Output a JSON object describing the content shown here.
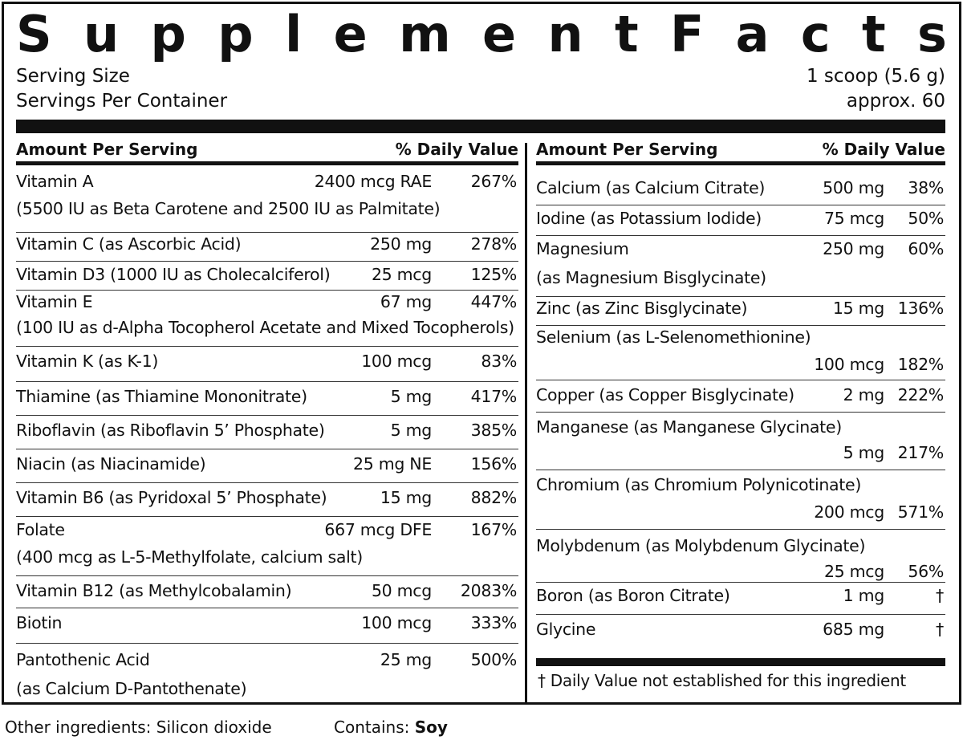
{
  "label": {
    "title_letters": [
      "S",
      "u",
      "p",
      "p",
      "l",
      "e",
      "m",
      "e",
      "n",
      "t",
      "F",
      "a",
      "c",
      "t",
      "s"
    ],
    "serving_size_label": "Serving Size",
    "serving_size_value": "1 scoop (5.6 g)",
    "servings_per_container_label": "Servings Per Container",
    "servings_per_container_value": "approx. 60",
    "amount_per_serving_label": "Amount Per Serving",
    "daily_value_label": "% Daily Value"
  },
  "left_nutrients": [
    {
      "name": "Vitamin A",
      "sub": "(5500 IU as Beta Carotene and 2500 IU as Palmitate)",
      "amount": "2400 mcg RAE",
      "dv": "267%"
    },
    {
      "name": "Vitamin C (as Ascorbic Acid)",
      "sub": "",
      "amount": "250 mg",
      "dv": "278%"
    },
    {
      "name": "Vitamin D3 (1000 IU as Cholecalciferol)",
      "sub": "",
      "amount": "25 mcg",
      "dv": "125%"
    },
    {
      "name": "Vitamin E",
      "sub": "(100 IU as d-Alpha Tocopherol Acetate and Mixed Tocopherols)",
      "amount": "67 mg",
      "dv": "447%"
    },
    {
      "name": "Vitamin K (as K-1)",
      "sub": "",
      "amount": "100 mcg",
      "dv": "83%"
    },
    {
      "name": "Thiamine (as Thiamine Mononitrate)",
      "sub": "",
      "amount": "5 mg",
      "dv": "417%"
    },
    {
      "name": "Riboflavin (as Riboflavin 5’ Phosphate)",
      "sub": "",
      "amount": "5 mg",
      "dv": "385%"
    },
    {
      "name": "Niacin (as Niacinamide)",
      "sub": "",
      "amount": "25 mg NE",
      "dv": "156%"
    },
    {
      "name": "Vitamin B6 (as Pyridoxal 5’ Phosphate)",
      "sub": "",
      "amount": "15 mg",
      "dv": "882%"
    },
    {
      "name": "Folate",
      "sub": "(400 mcg as L-5-Methylfolate, calcium salt)",
      "amount": "667 mcg DFE",
      "dv": "167%"
    },
    {
      "name": "Vitamin B12 (as Methylcobalamin)",
      "sub": "",
      "amount": "50 mcg",
      "dv": "2083%"
    },
    {
      "name": "Biotin",
      "sub": "",
      "amount": "100 mcg",
      "dv": "333%"
    },
    {
      "name": "Pantothenic Acid",
      "sub": "(as Calcium D-Pantothenate)",
      "amount": "25 mg",
      "dv": "500%"
    }
  ],
  "right_nutrients": [
    {
      "name": "Calcium (as Calcium Citrate)",
      "sub": "",
      "amount": "500 mg",
      "dv": "38%"
    },
    {
      "name": "Iodine (as Potassium Iodide)",
      "sub": "",
      "amount": "75 mcg",
      "dv": "50%"
    },
    {
      "name": "Magnesium",
      "sub": "(as Magnesium Bisglycinate)",
      "amount": "250 mg",
      "dv": "60%"
    },
    {
      "name": "Zinc (as Zinc Bisglycinate)",
      "sub": "",
      "amount": "15 mg",
      "dv": "136%"
    },
    {
      "name": "Selenium (as L-Selenomethionine)",
      "sub": "",
      "amount": "100 mcg",
      "dv": "182%"
    },
    {
      "name": "Copper (as Copper Bisglycinate)",
      "sub": "",
      "amount": "2 mg",
      "dv": "222%"
    },
    {
      "name": "Manganese (as Manganese Glycinate)",
      "sub": "",
      "amount": "5 mg",
      "dv": "217%"
    },
    {
      "name": "Chromium (as Chromium Polynicotinate)",
      "sub": "",
      "amount": "200 mcg",
      "dv": "571%"
    },
    {
      "name": "Molybdenum (as Molybdenum Glycinate)",
      "sub": "",
      "amount": "25 mcg",
      "dv": "56%"
    },
    {
      "name": "Boron (as Boron Citrate)",
      "sub": "",
      "amount": "1 mg",
      "dv": "†"
    },
    {
      "name": "Glycine",
      "sub": "",
      "amount": "685 mg",
      "dv": "†"
    }
  ],
  "footnote": "† Daily Value not established for this ingredient",
  "other_ingredients": "Other ingredients: Silicon dioxide",
  "contains_label": "Contains:",
  "contains_value": "Soy"
}
